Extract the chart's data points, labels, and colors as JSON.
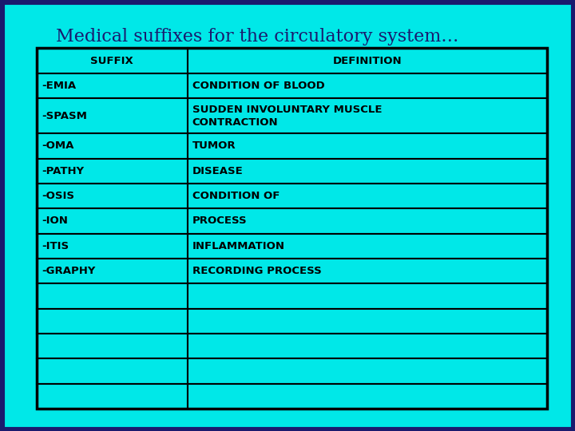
{
  "title": "Medical suffixes for the circulatory system…",
  "title_fontsize": 16,
  "title_color": "#1a1a6e",
  "background_color": "#00E8E8",
  "outer_border_color": "#1a1a6e",
  "table_bg": "#00E8E8",
  "border_color": "#000000",
  "header_row": [
    "SUFFIX",
    "DEFINITION"
  ],
  "data_rows": [
    [
      "-EMIA",
      "CONDITION OF BLOOD"
    ],
    [
      "-SPASM",
      "SUDDEN INVOLUNTARY MUSCLE\nCONTRACTION"
    ],
    [
      "-OMA",
      "TUMOR"
    ],
    [
      "-PATHY",
      "DISEASE"
    ],
    [
      "-OSIS",
      "CONDITION OF"
    ],
    [
      "-ION",
      "PROCESS"
    ],
    [
      "-ITIS",
      "INFLAMMATION"
    ],
    [
      "-GRAPHY",
      "RECORDING PROCESS"
    ],
    [
      "",
      ""
    ],
    [
      "",
      ""
    ],
    [
      "",
      ""
    ],
    [
      "",
      ""
    ],
    [
      "",
      ""
    ]
  ],
  "col_split": 0.295,
  "header_fontsize": 9.5,
  "cell_fontsize": 9.5,
  "header_text_color": "#000000",
  "cell_text_color": "#000000"
}
